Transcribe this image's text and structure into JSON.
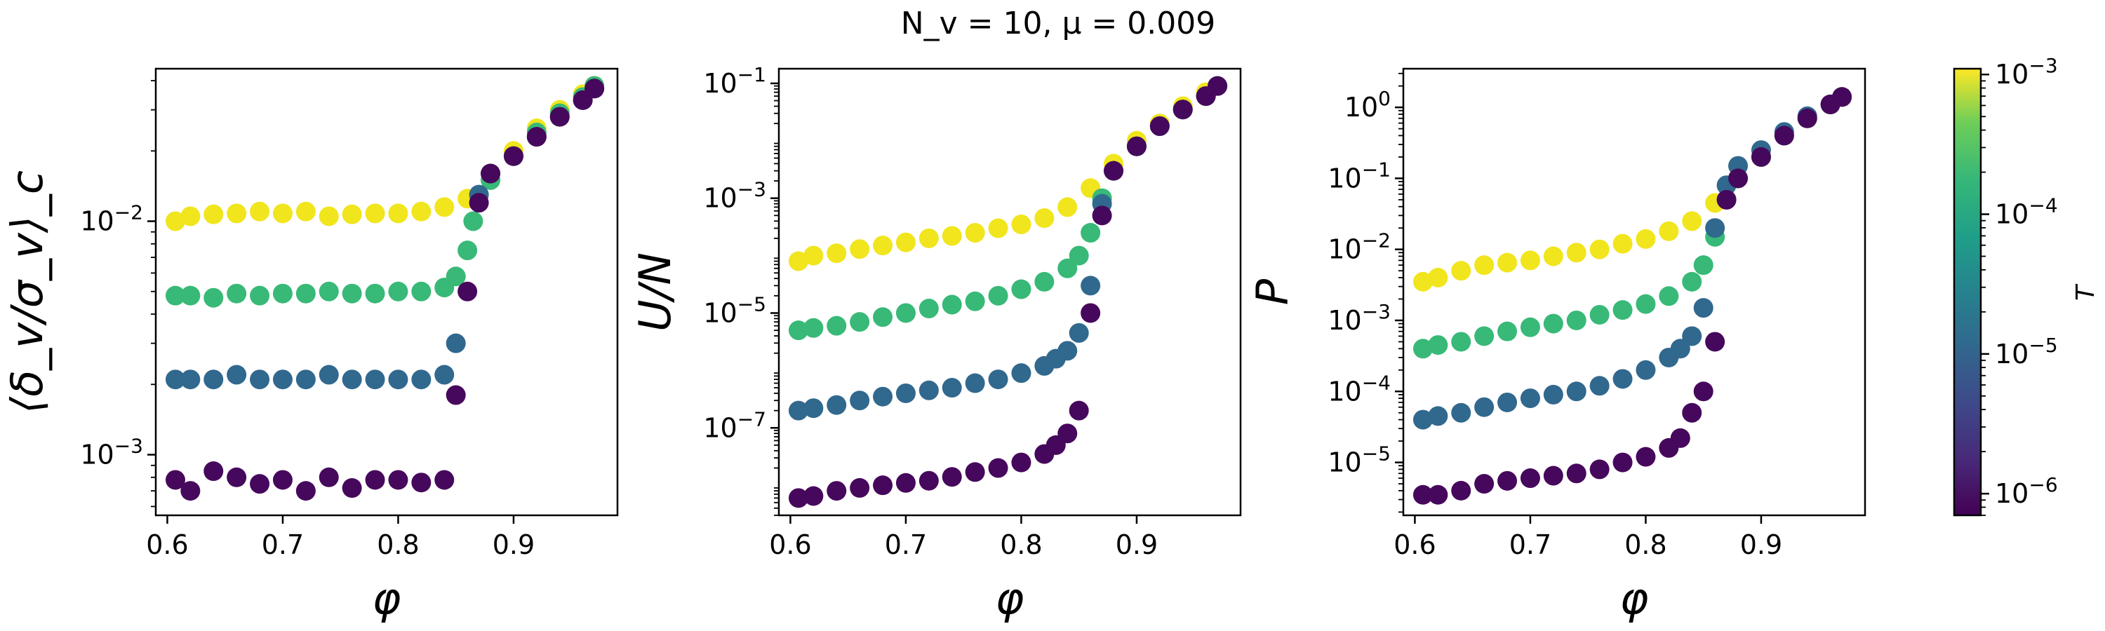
{
  "title": "N_v = 10, μ = 0.009",
  "colors": {
    "T_1e-3": "#f1e51d",
    "T_1e-4": "#38b977",
    "T_1e-5": "#31688e",
    "T_1e-6": "#46085c"
  },
  "colorbar": {
    "label": "T",
    "ticks": [
      {
        "value": 0.001,
        "label": "10^-3"
      },
      {
        "value": 0.0001,
        "label": "10^-4"
      },
      {
        "value": 1e-05,
        "label": "10^-5"
      },
      {
        "value": 1e-06,
        "label": "10^-6"
      }
    ],
    "range": [
      7e-07,
      0.0011
    ],
    "scale": "log",
    "colormap": "viridis"
  },
  "chart_data": [
    {
      "type": "scatter",
      "title": "",
      "xlabel": "φ",
      "ylabel": "⟨δ_v/σ_v⟩_c",
      "xlim": [
        0.59,
        0.99
      ],
      "ylim": [
        0.00055,
        0.045
      ],
      "yscale": "log",
      "xticks": [
        0.6,
        0.7,
        0.8,
        0.9
      ],
      "yticks": [
        {
          "value": 0.01,
          "label": "10^-2"
        },
        {
          "value": 0.001,
          "label": "10^-3"
        }
      ],
      "series": [
        {
          "color_key": "T_1e-3",
          "x": [
            0.607,
            0.62,
            0.64,
            0.66,
            0.68,
            0.7,
            0.72,
            0.74,
            0.76,
            0.78,
            0.8,
            0.82,
            0.84,
            0.86,
            0.88,
            0.9,
            0.92,
            0.94,
            0.96,
            0.97
          ],
          "y": [
            0.01,
            0.0105,
            0.0107,
            0.0108,
            0.011,
            0.0108,
            0.011,
            0.0105,
            0.0107,
            0.0108,
            0.0108,
            0.011,
            0.0115,
            0.0125,
            0.016,
            0.02,
            0.025,
            0.03,
            0.035,
            0.038
          ]
        },
        {
          "color_key": "T_1e-4",
          "x": [
            0.607,
            0.62,
            0.64,
            0.66,
            0.68,
            0.7,
            0.72,
            0.74,
            0.76,
            0.78,
            0.8,
            0.82,
            0.84,
            0.85,
            0.86,
            0.865,
            0.88,
            0.9,
            0.92,
            0.94,
            0.96,
            0.97
          ],
          "y": [
            0.0048,
            0.0048,
            0.0047,
            0.0049,
            0.0048,
            0.0049,
            0.0049,
            0.005,
            0.0049,
            0.0049,
            0.005,
            0.005,
            0.0052,
            0.0058,
            0.0075,
            0.01,
            0.015,
            0.019,
            0.024,
            0.029,
            0.034,
            0.038
          ]
        },
        {
          "color_key": "T_1e-5",
          "x": [
            0.607,
            0.62,
            0.64,
            0.66,
            0.68,
            0.7,
            0.72,
            0.74,
            0.76,
            0.78,
            0.8,
            0.82,
            0.84,
            0.85,
            0.87,
            0.88,
            0.9,
            0.92,
            0.94,
            0.96,
            0.97
          ],
          "y": [
            0.0021,
            0.0021,
            0.0021,
            0.0022,
            0.0021,
            0.0021,
            0.0021,
            0.0022,
            0.0021,
            0.0021,
            0.0021,
            0.0021,
            0.0022,
            0.003,
            0.013,
            0.016,
            0.019,
            0.023,
            0.028,
            0.033,
            0.037
          ]
        },
        {
          "color_key": "T_1e-6",
          "x": [
            0.607,
            0.62,
            0.64,
            0.66,
            0.68,
            0.7,
            0.72,
            0.74,
            0.76,
            0.78,
            0.8,
            0.82,
            0.84,
            0.85,
            0.86,
            0.87,
            0.88,
            0.9,
            0.92,
            0.94,
            0.96,
            0.97
          ],
          "y": [
            0.00078,
            0.0007,
            0.00085,
            0.0008,
            0.00075,
            0.00078,
            0.0007,
            0.0008,
            0.00072,
            0.00078,
            0.00078,
            0.00076,
            0.00078,
            0.0018,
            0.005,
            0.012,
            0.016,
            0.019,
            0.023,
            0.028,
            0.033,
            0.037
          ]
        }
      ]
    },
    {
      "type": "scatter",
      "title": "",
      "xlabel": "φ",
      "ylabel": "U/N",
      "xlim": [
        0.59,
        0.99
      ],
      "ylim": [
        3e-09,
        0.18
      ],
      "yscale": "log",
      "xticks": [
        0.6,
        0.7,
        0.8,
        0.9
      ],
      "yticks": [
        {
          "value": 0.1,
          "label": "10^-1"
        },
        {
          "value": 0.001,
          "label": "10^-3"
        },
        {
          "value": 1e-05,
          "label": "10^-5"
        },
        {
          "value": 1e-07,
          "label": "10^-7"
        }
      ],
      "series": [
        {
          "color_key": "T_1e-3",
          "x": [
            0.607,
            0.62,
            0.64,
            0.66,
            0.68,
            0.7,
            0.72,
            0.74,
            0.76,
            0.78,
            0.8,
            0.82,
            0.84,
            0.86,
            0.88,
            0.9,
            0.92,
            0.94,
            0.96,
            0.97
          ],
          "y": [
            8e-05,
            0.0001,
            0.00011,
            0.00013,
            0.00015,
            0.00017,
            0.0002,
            0.00022,
            0.00025,
            0.0003,
            0.00035,
            0.00045,
            0.0007,
            0.0015,
            0.004,
            0.01,
            0.02,
            0.04,
            0.07,
            0.09
          ]
        },
        {
          "color_key": "T_1e-4",
          "x": [
            0.607,
            0.62,
            0.64,
            0.66,
            0.68,
            0.7,
            0.72,
            0.74,
            0.76,
            0.78,
            0.8,
            0.82,
            0.84,
            0.85,
            0.86,
            0.87,
            0.88,
            0.9,
            0.92,
            0.94,
            0.96,
            0.97
          ],
          "y": [
            5e-06,
            5.5e-06,
            6e-06,
            7e-06,
            8.5e-06,
            1e-05,
            1.2e-05,
            1.4e-05,
            1.6e-05,
            2e-05,
            2.6e-05,
            3.5e-05,
            6e-05,
            0.0001,
            0.00025,
            0.001,
            0.003,
            0.008,
            0.018,
            0.035,
            0.06,
            0.09
          ]
        },
        {
          "color_key": "T_1e-5",
          "x": [
            0.607,
            0.62,
            0.64,
            0.66,
            0.68,
            0.7,
            0.72,
            0.74,
            0.76,
            0.78,
            0.8,
            0.82,
            0.83,
            0.84,
            0.85,
            0.86,
            0.87,
            0.88,
            0.9,
            0.92,
            0.94,
            0.96,
            0.97
          ],
          "y": [
            2e-07,
            2.2e-07,
            2.5e-07,
            3e-07,
            3.5e-07,
            4e-07,
            4.5e-07,
            5e-07,
            6e-07,
            7e-07,
            9e-07,
            1.2e-06,
            1.6e-06,
            2.2e-06,
            4.5e-06,
            3e-05,
            0.0008,
            0.003,
            0.008,
            0.018,
            0.035,
            0.06,
            0.09
          ]
        },
        {
          "color_key": "T_1e-6",
          "x": [
            0.607,
            0.62,
            0.64,
            0.66,
            0.68,
            0.7,
            0.72,
            0.74,
            0.76,
            0.78,
            0.8,
            0.82,
            0.83,
            0.84,
            0.85,
            0.86,
            0.87,
            0.88,
            0.9,
            0.92,
            0.94,
            0.96,
            0.97
          ],
          "y": [
            6e-09,
            6.5e-09,
            8e-09,
            9e-09,
            1e-08,
            1.1e-08,
            1.2e-08,
            1.4e-08,
            1.7e-08,
            2e-08,
            2.5e-08,
            3.5e-08,
            5e-08,
            8e-08,
            2e-07,
            1e-05,
            0.0005,
            0.003,
            0.008,
            0.018,
            0.035,
            0.06,
            0.09
          ]
        }
      ]
    },
    {
      "type": "scatter",
      "title": "",
      "xlabel": "φ",
      "ylabel": "P",
      "xlim": [
        0.59,
        0.99
      ],
      "ylim": [
        1.8e-06,
        3.5
      ],
      "yscale": "log",
      "xticks": [
        0.6,
        0.7,
        0.8,
        0.9
      ],
      "yticks": [
        {
          "value": 1,
          "label": "10^0"
        },
        {
          "value": 0.1,
          "label": "10^-1"
        },
        {
          "value": 0.01,
          "label": "10^-2"
        },
        {
          "value": 0.001,
          "label": "10^-3"
        },
        {
          "value": 0.0001,
          "label": "10^-4"
        },
        {
          "value": 1e-05,
          "label": "10^-5"
        }
      ],
      "series": [
        {
          "color_key": "T_1e-3",
          "x": [
            0.607,
            0.62,
            0.64,
            0.66,
            0.68,
            0.7,
            0.72,
            0.74,
            0.76,
            0.78,
            0.8,
            0.82,
            0.84,
            0.86,
            0.88,
            0.9,
            0.92,
            0.94,
            0.96,
            0.97
          ],
          "y": [
            0.0035,
            0.004,
            0.005,
            0.006,
            0.0065,
            0.007,
            0.008,
            0.009,
            0.01,
            0.012,
            0.014,
            0.018,
            0.025,
            0.045,
            0.1,
            0.2,
            0.4,
            0.7,
            1.1,
            1.4
          ]
        },
        {
          "color_key": "T_1e-4",
          "x": [
            0.607,
            0.62,
            0.64,
            0.66,
            0.68,
            0.7,
            0.72,
            0.74,
            0.76,
            0.78,
            0.8,
            0.82,
            0.84,
            0.85,
            0.86,
            0.87,
            0.88,
            0.9,
            0.92,
            0.94,
            0.96,
            0.97
          ],
          "y": [
            0.0004,
            0.00045,
            0.0005,
            0.0006,
            0.0007,
            0.0008,
            0.0009,
            0.001,
            0.0012,
            0.0014,
            0.0017,
            0.0022,
            0.0035,
            0.006,
            0.015,
            0.05,
            0.1,
            0.2,
            0.4,
            0.7,
            1.1,
            1.4
          ]
        },
        {
          "color_key": "T_1e-5",
          "x": [
            0.607,
            0.62,
            0.64,
            0.66,
            0.68,
            0.7,
            0.72,
            0.74,
            0.76,
            0.78,
            0.8,
            0.82,
            0.83,
            0.84,
            0.85,
            0.86,
            0.87,
            0.88,
            0.9,
            0.92,
            0.94,
            0.96,
            0.97
          ],
          "y": [
            4e-05,
            4.5e-05,
            5e-05,
            6e-05,
            7e-05,
            8e-05,
            9e-05,
            0.0001,
            0.00012,
            0.00015,
            0.0002,
            0.0003,
            0.0004,
            0.0006,
            0.0015,
            0.02,
            0.08,
            0.15,
            0.25,
            0.45,
            0.75,
            1.1,
            1.4
          ]
        },
        {
          "color_key": "T_1e-6",
          "x": [
            0.607,
            0.62,
            0.64,
            0.66,
            0.68,
            0.7,
            0.72,
            0.74,
            0.76,
            0.78,
            0.8,
            0.82,
            0.83,
            0.84,
            0.85,
            0.86,
            0.87,
            0.88,
            0.9,
            0.92,
            0.94,
            0.96,
            0.97
          ],
          "y": [
            3.5e-06,
            3.5e-06,
            4e-06,
            5e-06,
            5.5e-06,
            6e-06,
            6.5e-06,
            7e-06,
            8e-06,
            1e-05,
            1.2e-05,
            1.6e-05,
            2.2e-05,
            5e-05,
            0.0001,
            0.0005,
            0.05,
            0.1,
            0.2,
            0.4,
            0.7,
            1.1,
            1.4
          ]
        }
      ]
    }
  ]
}
